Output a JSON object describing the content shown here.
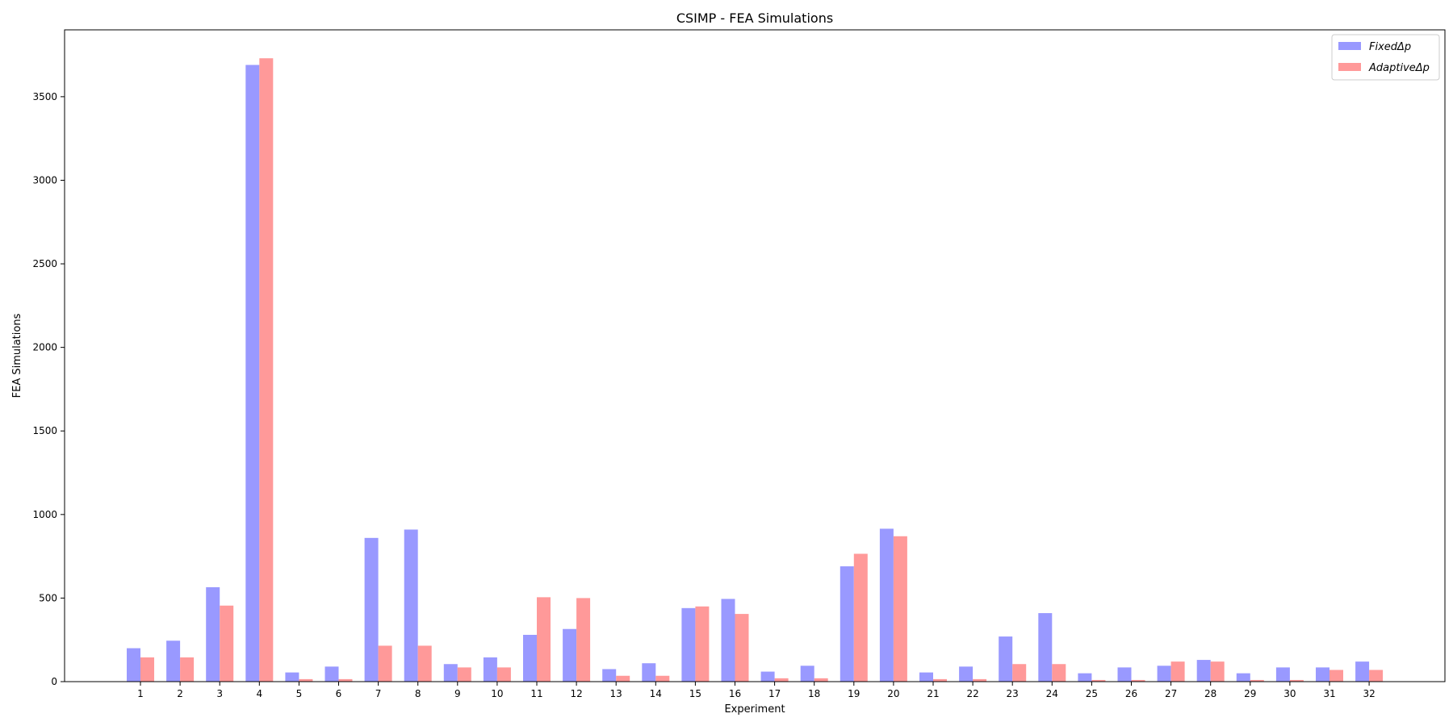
{
  "chart_data": {
    "type": "bar",
    "title": "CSIMP - FEA Simulations",
    "xlabel": "Experiment",
    "ylabel": "FEA Simulations",
    "ylim": [
      0,
      3900
    ],
    "yticks": [
      0,
      500,
      1000,
      1500,
      2000,
      2500,
      3000,
      3500
    ],
    "grid": false,
    "legend_position": "top-right",
    "categories": [
      "1",
      "2",
      "3",
      "4",
      "5",
      "6",
      "7",
      "8",
      "9",
      "10",
      "11",
      "12",
      "13",
      "14",
      "15",
      "16",
      "17",
      "18",
      "19",
      "20",
      "21",
      "22",
      "23",
      "24",
      "25",
      "26",
      "27",
      "28",
      "29",
      "30",
      "31",
      "32"
    ],
    "series": [
      {
        "name": "FixedΔp",
        "color": "#9999ff",
        "values": [
          200,
          245,
          565,
          3690,
          55,
          90,
          860,
          910,
          105,
          145,
          280,
          315,
          75,
          110,
          440,
          495,
          60,
          95,
          690,
          915,
          55,
          90,
          270,
          410,
          50,
          85,
          95,
          130,
          50,
          85,
          85,
          120
        ]
      },
      {
        "name": "AdaptiveΔp",
        "color": "#ff9999",
        "values": [
          145,
          145,
          455,
          3730,
          15,
          15,
          215,
          215,
          85,
          85,
          505,
          500,
          35,
          35,
          450,
          405,
          20,
          20,
          765,
          870,
          15,
          15,
          105,
          105,
          10,
          10,
          120,
          120,
          10,
          10,
          70,
          70
        ]
      }
    ]
  }
}
